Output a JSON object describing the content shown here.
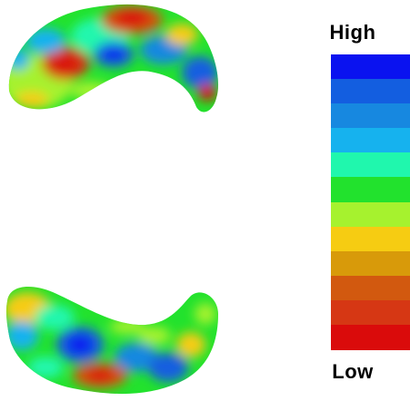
{
  "legend": {
    "high_label": "High",
    "low_label": "Low",
    "colors": [
      "#0a12f0",
      "#135ee0",
      "#1788e0",
      "#16b2ee",
      "#20f7ad",
      "#22e22d",
      "#a6f22e",
      "#f6cc12",
      "#d89a0a",
      "#d2590f",
      "#d63714",
      "#da0b0b"
    ]
  },
  "shapes": {
    "top_icon": "heatmap-shape-icon",
    "bottom_icon": "heatmap-shape-icon"
  }
}
